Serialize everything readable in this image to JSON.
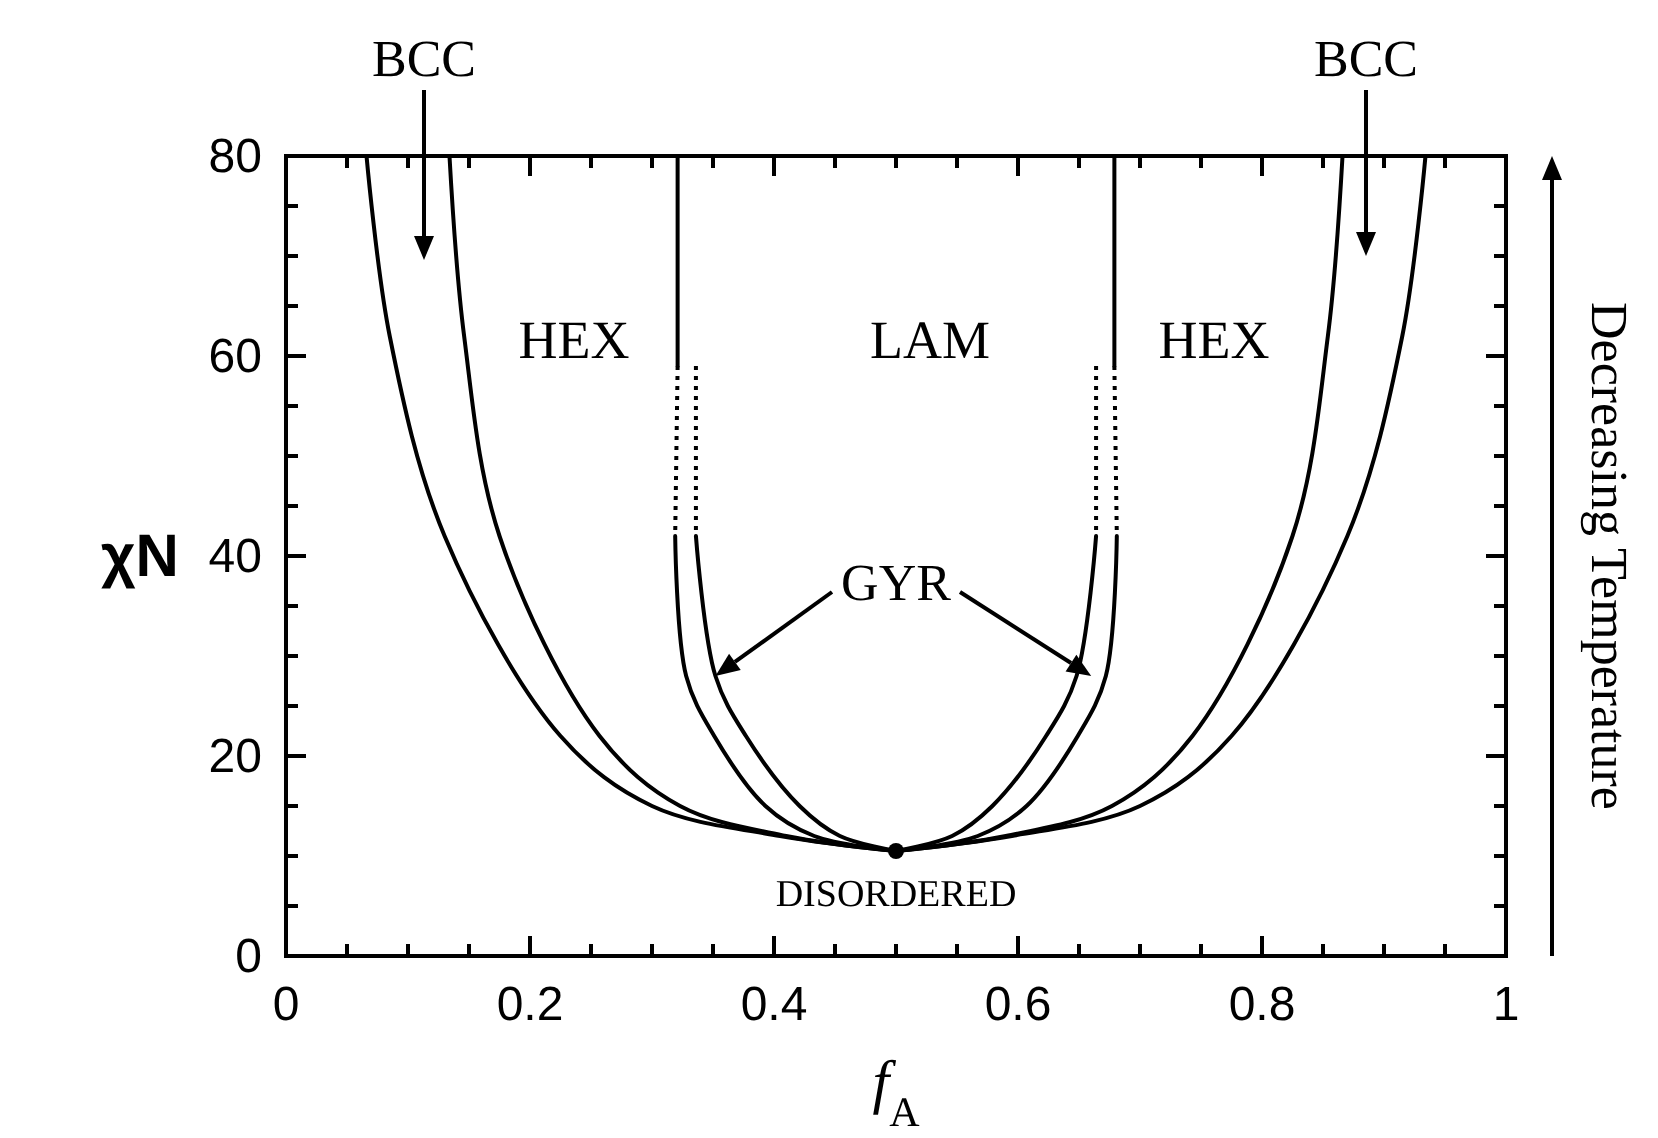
{
  "chart_data": {
    "type": "line",
    "xlabel": "f$_{A}$",
    "ylabel": "χN",
    "xlim": [
      0,
      1
    ],
    "ylim": [
      0,
      80
    ],
    "xticks": [
      0,
      {
        "value": 0.05,
        "label": null
      },
      {
        "value": 0.1,
        "label": null
      },
      {
        "value": 0.15,
        "label": null
      },
      0.2,
      {
        "value": 0.25,
        "label": null
      },
      {
        "value": 0.3,
        "label": null
      },
      {
        "value": 0.35,
        "label": null
      },
      0.4,
      {
        "value": 0.45,
        "label": null
      },
      {
        "value": 0.5,
        "label": null
      },
      {
        "value": 0.55,
        "label": null
      },
      0.6,
      {
        "value": 0.65,
        "label": null
      },
      {
        "value": 0.7,
        "label": null
      },
      {
        "value": 0.75,
        "label": null
      },
      0.8,
      {
        "value": 0.85,
        "label": null
      },
      {
        "value": 0.9,
        "label": null
      },
      {
        "value": 0.95,
        "label": null
      },
      1
    ],
    "yticks": [
      0,
      {
        "value": 5,
        "label": null
      },
      {
        "value": 10,
        "label": null
      },
      {
        "value": 15,
        "label": null
      },
      20,
      {
        "value": 25,
        "label": null
      },
      {
        "value": 30,
        "label": null
      },
      {
        "value": 35,
        "label": null
      },
      40,
      {
        "value": 45,
        "label": null
      },
      {
        "value": 50,
        "label": null
      },
      {
        "value": 55,
        "label": null
      },
      60,
      {
        "value": 65,
        "label": null
      },
      {
        "value": 70,
        "label": null
      },
      {
        "value": 75,
        "label": null
      },
      80
    ],
    "grid": false,
    "marker": "none",
    "series": [
      {
        "color": "#000000",
        "x": [
          0.066,
          0.085,
          0.13,
          0.225,
          0.3,
          0.405,
          0.5
        ],
        "values": [
          80,
          62,
          42,
          22,
          15,
          12,
          10.5
        ]
      },
      {
        "color": "#000000",
        "x": [
          0.134,
          0.146,
          0.175,
          0.257,
          0.323,
          0.41,
          0.5
        ],
        "values": [
          80,
          62,
          42,
          22,
          15,
          12,
          10.5
        ]
      },
      {
        "color": "#000000",
        "x": [
          0.321,
          0.321
        ],
        "values": [
          80,
          59
        ]
      },
      {
        "color": "#000000",
        "x": [
          0.321,
          0.319
        ],
        "values": [
          59,
          42
        ],
        "line_style": "dotted"
      },
      {
        "color": "#000000",
        "x": [
          0.319,
          0.328,
          0.351,
          0.393,
          0.433,
          0.5
        ],
        "values": [
          42,
          28,
          22,
          15,
          12,
          10.5
        ]
      },
      {
        "color": "#000000",
        "x": [
          0.336,
          0.336
        ],
        "values": [
          59,
          42
        ],
        "line_style": "dotted"
      },
      {
        "color": "#000000",
        "x": [
          0.336,
          0.352,
          0.377,
          0.421,
          0.454,
          0.5
        ],
        "values": [
          42,
          28,
          22,
          15,
          12,
          10.5
        ]
      },
      {
        "color": "#000000",
        "x": [
          0.934,
          0.915,
          0.87,
          0.775,
          0.7,
          0.595,
          0.5
        ],
        "values": [
          80,
          62,
          42,
          22,
          15,
          12,
          10.5
        ]
      },
      {
        "color": "#000000",
        "x": [
          0.866,
          0.854,
          0.825,
          0.743,
          0.677,
          0.59,
          0.5
        ],
        "values": [
          80,
          62,
          42,
          22,
          15,
          12,
          10.5
        ]
      },
      {
        "color": "#000000",
        "x": [
          0.679,
          0.679
        ],
        "values": [
          80,
          59
        ]
      },
      {
        "color": "#000000",
        "x": [
          0.679,
          0.681
        ],
        "values": [
          59,
          42
        ],
        "line_style": "dotted"
      },
      {
        "color": "#000000",
        "x": [
          0.681,
          0.672,
          0.649,
          0.607,
          0.567,
          0.5
        ],
        "values": [
          42,
          28,
          22,
          15,
          12,
          10.5
        ]
      },
      {
        "color": "#000000",
        "x": [
          0.664,
          0.664
        ],
        "values": [
          59,
          42
        ],
        "line_style": "dotted"
      },
      {
        "color": "#000000",
        "x": [
          0.664,
          0.648,
          0.623,
          0.579,
          0.546,
          0.5
        ],
        "values": [
          42,
          28,
          22,
          15,
          12,
          10.5
        ]
      },
      {
        "type": "scatter",
        "marker": "circle",
        "color": "#000000",
        "x": [
          0.5
        ],
        "values": [
          10.5
        ]
      }
    ],
    "annotations": [
      "BCC",
      "HEX",
      "LAM",
      "HEX",
      "BCC",
      {
        "text": "GYR",
        "x": 0.352,
        "y": 28
      },
      "DISORDERED",
      "Decreasing Temperature"
    ]
  }
}
